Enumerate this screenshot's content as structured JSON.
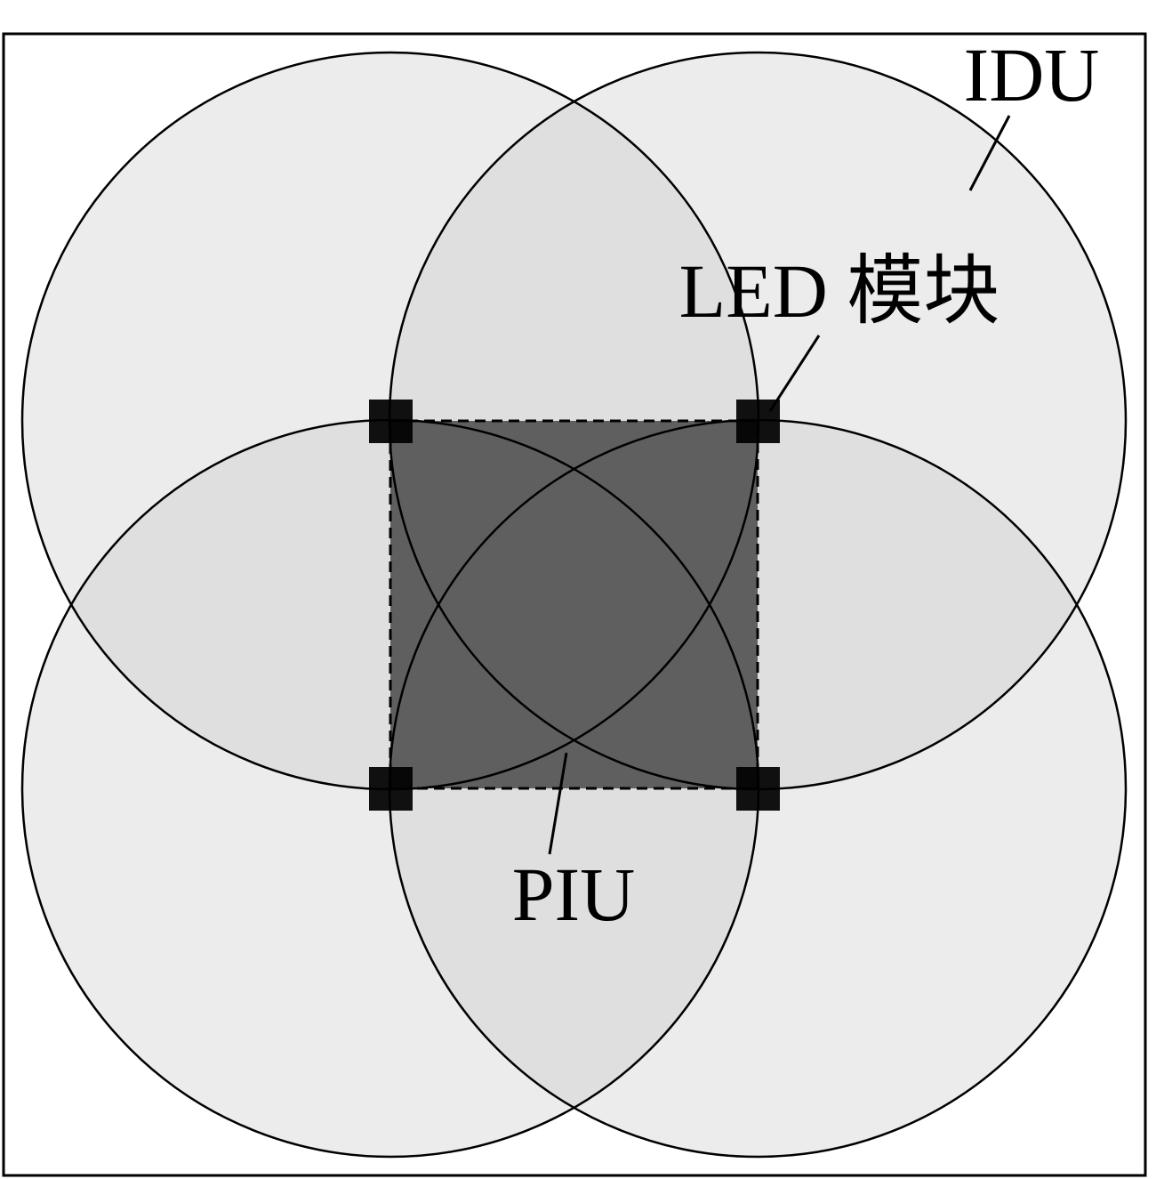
{
  "labels": {
    "idu": "IDU",
    "led_module": "LED 模块",
    "piu": "PIU"
  },
  "colors": {
    "background": "#ffffff",
    "coverage_fill": "#c8c8c8",
    "overlap_square": "#5f5f5f",
    "led_module": "#000000",
    "outline": "#000000"
  },
  "led_modules": [
    {
      "id": "top-left"
    },
    {
      "id": "top-right"
    },
    {
      "id": "bottom-left"
    },
    {
      "id": "bottom-right"
    }
  ]
}
